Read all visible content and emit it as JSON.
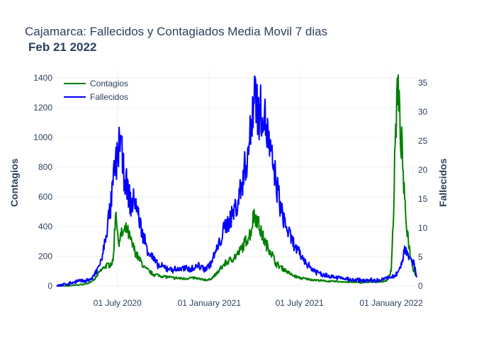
{
  "chart_data": {
    "type": "line",
    "title": "Cajamarca: Fallecidos y Contagiados Media Movil 7 dias",
    "subtitle": "Feb 21 2022",
    "x_range": [
      "2020-03-01",
      "2022-02-21"
    ],
    "x_ticks": [
      {
        "date": "2020-07-01",
        "label": "01 July 2020"
      },
      {
        "date": "2021-01-01",
        "label": "01 January 2021"
      },
      {
        "date": "2021-07-01",
        "label": "01 July 2021"
      },
      {
        "date": "2022-01-01",
        "label": "01 January 2022"
      }
    ],
    "y_left": {
      "label": "Contagios",
      "range": [
        0,
        1400
      ],
      "ticks": [
        0,
        200,
        400,
        600,
        800,
        1000,
        1200,
        1400
      ]
    },
    "y_right": {
      "label": "Fallecidos",
      "range": [
        0,
        36
      ],
      "ticks": [
        0,
        5,
        10,
        15,
        20,
        25,
        30,
        35
      ]
    },
    "grid": true,
    "legend_position": "top-left",
    "series": [
      {
        "name": "Contagios",
        "axis": "left",
        "color": "#008000",
        "points": [
          [
            "2020-03-01",
            0
          ],
          [
            "2020-03-25",
            2
          ],
          [
            "2020-04-15",
            8
          ],
          [
            "2020-05-01",
            15
          ],
          [
            "2020-05-15",
            40
          ],
          [
            "2020-05-25",
            90
          ],
          [
            "2020-06-05",
            130
          ],
          [
            "2020-06-15",
            145
          ],
          [
            "2020-06-22",
            160
          ],
          [
            "2020-06-28",
            540
          ],
          [
            "2020-07-02",
            300
          ],
          [
            "2020-07-10",
            350
          ],
          [
            "2020-07-20",
            380
          ],
          [
            "2020-07-30",
            280
          ],
          [
            "2020-08-10",
            200
          ],
          [
            "2020-08-25",
            120
          ],
          [
            "2020-09-10",
            80
          ],
          [
            "2020-10-01",
            65
          ],
          [
            "2020-10-20",
            55
          ],
          [
            "2020-11-10",
            50
          ],
          [
            "2020-12-01",
            55
          ],
          [
            "2020-12-15",
            45
          ],
          [
            "2021-01-01",
            40
          ],
          [
            "2021-01-15",
            80
          ],
          [
            "2021-02-01",
            150
          ],
          [
            "2021-02-15",
            180
          ],
          [
            "2021-03-01",
            220
          ],
          [
            "2021-03-15",
            300
          ],
          [
            "2021-03-25",
            360
          ],
          [
            "2021-04-01",
            490
          ],
          [
            "2021-04-08",
            440
          ],
          [
            "2021-04-15",
            360
          ],
          [
            "2021-04-25",
            280
          ],
          [
            "2021-05-05",
            230
          ],
          [
            "2021-05-15",
            150
          ],
          [
            "2021-06-01",
            110
          ],
          [
            "2021-06-15",
            75
          ],
          [
            "2021-07-01",
            55
          ],
          [
            "2021-07-20",
            45
          ],
          [
            "2021-08-15",
            35
          ],
          [
            "2021-09-15",
            30
          ],
          [
            "2021-10-15",
            25
          ],
          [
            "2021-11-15",
            25
          ],
          [
            "2021-12-15",
            30
          ],
          [
            "2021-12-25",
            40
          ],
          [
            "2022-01-01",
            110
          ],
          [
            "2022-01-05",
            420
          ],
          [
            "2022-01-10",
            1050
          ],
          [
            "2022-01-14",
            1370
          ],
          [
            "2022-01-18",
            1100
          ],
          [
            "2022-01-23",
            900
          ],
          [
            "2022-01-28",
            540
          ],
          [
            "2022-02-02",
            380
          ],
          [
            "2022-02-08",
            220
          ],
          [
            "2022-02-14",
            120
          ],
          [
            "2022-02-21",
            60
          ]
        ]
      },
      {
        "name": "Fallecidos",
        "axis": "right",
        "color": "#0000ff",
        "points": [
          [
            "2020-03-01",
            0
          ],
          [
            "2020-03-20",
            0.3
          ],
          [
            "2020-04-10",
            0.8
          ],
          [
            "2020-04-25",
            0.9
          ],
          [
            "2020-05-10",
            1.2
          ],
          [
            "2020-05-20",
            2.5
          ],
          [
            "2020-06-01",
            5
          ],
          [
            "2020-06-10",
            10
          ],
          [
            "2020-06-18",
            14
          ],
          [
            "2020-06-25",
            20
          ],
          [
            "2020-07-01",
            22
          ],
          [
            "2020-07-06",
            26.5
          ],
          [
            "2020-07-12",
            20
          ],
          [
            "2020-07-20",
            17
          ],
          [
            "2020-07-28",
            14
          ],
          [
            "2020-08-05",
            15
          ],
          [
            "2020-08-12",
            12
          ],
          [
            "2020-08-20",
            9
          ],
          [
            "2020-09-01",
            6
          ],
          [
            "2020-09-20",
            3.5
          ],
          [
            "2020-10-10",
            3
          ],
          [
            "2020-10-25",
            2.8
          ],
          [
            "2020-11-10",
            3
          ],
          [
            "2020-11-25",
            3
          ],
          [
            "2020-12-10",
            3.5
          ],
          [
            "2020-12-25",
            3
          ],
          [
            "2021-01-05",
            4
          ],
          [
            "2021-01-20",
            7
          ],
          [
            "2021-02-01",
            10
          ],
          [
            "2021-02-15",
            12
          ],
          [
            "2021-03-01",
            15
          ],
          [
            "2021-03-15",
            21
          ],
          [
            "2021-03-25",
            26
          ],
          [
            "2021-04-02",
            35.5
          ],
          [
            "2021-04-10",
            29
          ],
          [
            "2021-04-18",
            31
          ],
          [
            "2021-04-28",
            26
          ],
          [
            "2021-05-05",
            22
          ],
          [
            "2021-05-15",
            18
          ],
          [
            "2021-05-25",
            13
          ],
          [
            "2021-06-05",
            10
          ],
          [
            "2021-06-20",
            7
          ],
          [
            "2021-07-05",
            5
          ],
          [
            "2021-07-25",
            3
          ],
          [
            "2021-08-15",
            2
          ],
          [
            "2021-09-15",
            1.5
          ],
          [
            "2021-10-15",
            1
          ],
          [
            "2021-11-15",
            1
          ],
          [
            "2021-12-10",
            1
          ],
          [
            "2021-12-25",
            1.5
          ],
          [
            "2022-01-05",
            1.5
          ],
          [
            "2022-01-15",
            2.5
          ],
          [
            "2022-01-22",
            4
          ],
          [
            "2022-01-28",
            6.5
          ],
          [
            "2022-02-03",
            6
          ],
          [
            "2022-02-10",
            4
          ],
          [
            "2022-02-16",
            4
          ],
          [
            "2022-02-21",
            1.5
          ]
        ]
      }
    ]
  }
}
